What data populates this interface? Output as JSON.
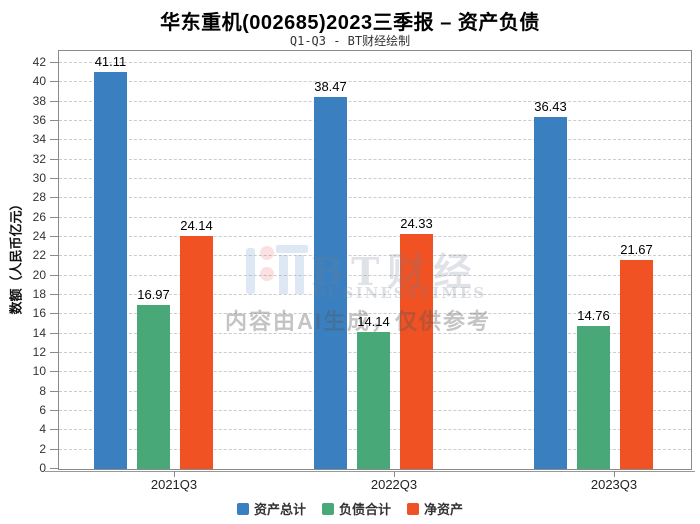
{
  "watermark": {
    "brand": "BT财经",
    "brand_sub": "BUSINESSTIMES",
    "ai_note": "内容由AI生成，仅供参考"
  },
  "chart_data": {
    "type": "bar",
    "title": "华东重机(002685)2023三季报 – 资产负债",
    "subtitle": "Q1-Q3 - BT财经绘制",
    "categories": [
      "2021Q3",
      "2022Q3",
      "2023Q3"
    ],
    "series": [
      {
        "name": "资产总计",
        "color": "#3a80c1",
        "values": [
          41.11,
          38.47,
          36.43
        ]
      },
      {
        "name": "负债合计",
        "color": "#48a877",
        "values": [
          16.97,
          14.14,
          14.76
        ]
      },
      {
        "name": "净资产",
        "color": "#f05224",
        "values": [
          24.14,
          24.33,
          21.67
        ]
      }
    ],
    "xlabel": "",
    "ylabel": "数额（人民币亿元）",
    "ylim": [
      0,
      42
    ],
    "ytick_step": 2,
    "grid": true,
    "legend_position": "bottom"
  }
}
